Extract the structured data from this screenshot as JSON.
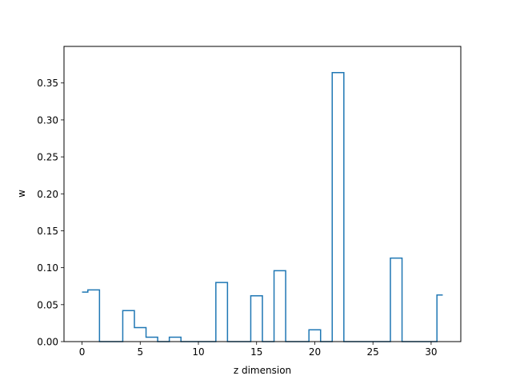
{
  "chart_data": {
    "type": "line",
    "style": "step-mid",
    "title": "",
    "xlabel": "z dimension",
    "ylabel": "w",
    "xlim": [
      -1.55,
      32.55
    ],
    "ylim": [
      0,
      0.3995
    ],
    "xticks": [
      0,
      5,
      10,
      15,
      20,
      25,
      30
    ],
    "yticks": [
      0.0,
      0.05,
      0.1,
      0.15,
      0.2,
      0.25,
      0.3,
      0.35
    ],
    "ytick_labels": [
      "0.00",
      "0.05",
      "0.10",
      "0.15",
      "0.20",
      "0.25",
      "0.30",
      "0.35"
    ],
    "grid": false,
    "line_color": "#1f77b4",
    "x": [
      0,
      1,
      2,
      3,
      4,
      5,
      6,
      7,
      8,
      9,
      10,
      11,
      12,
      13,
      14,
      15,
      16,
      17,
      18,
      19,
      20,
      21,
      22,
      23,
      24,
      25,
      26,
      27,
      28,
      29,
      30,
      31
    ],
    "values": [
      0.067,
      0.07,
      0.0,
      0.0,
      0.042,
      0.019,
      0.006,
      0.0,
      0.006,
      0.0,
      0.0,
      0.0,
      0.08,
      0.0,
      0.0,
      0.062,
      0.0,
      0.096,
      0.0,
      0.0,
      0.016,
      0.0,
      0.364,
      0.0,
      0.0,
      0.0,
      0.0,
      0.113,
      0.0,
      0.0,
      0.0,
      0.063
    ]
  }
}
